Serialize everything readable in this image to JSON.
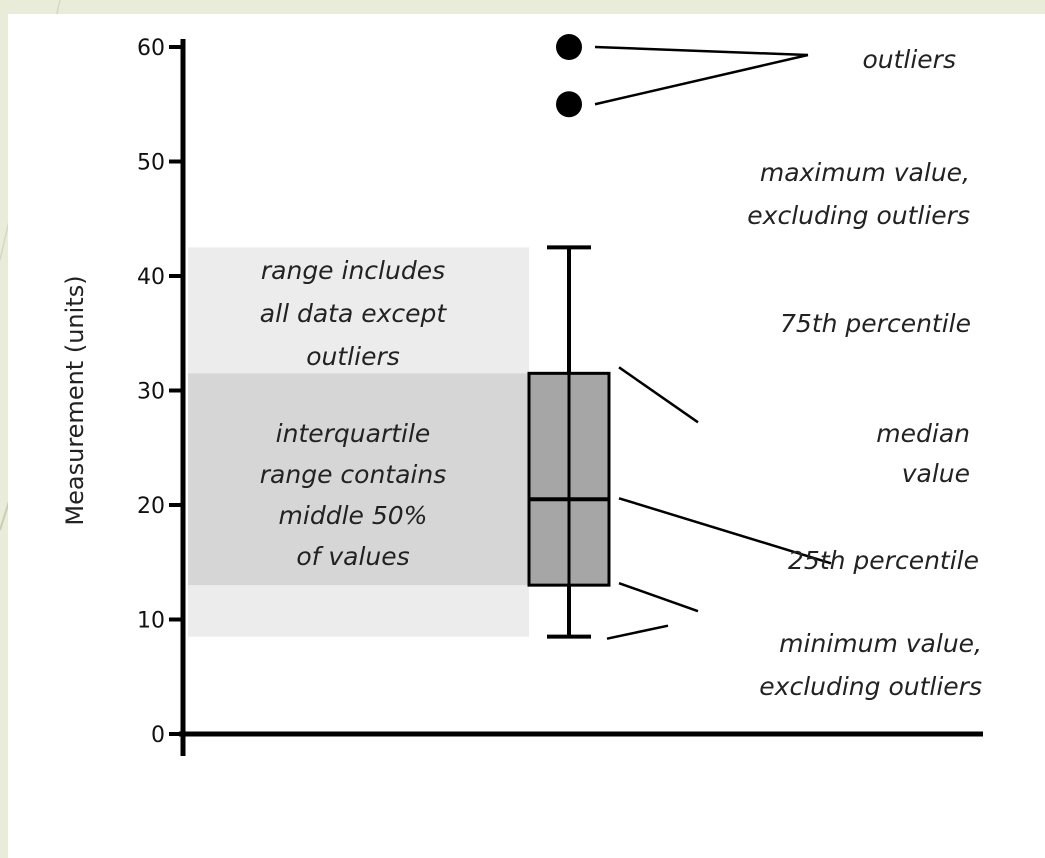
{
  "chart_data": {
    "type": "box",
    "ylabel": "Measurement (units)",
    "ylim": [
      0,
      60
    ],
    "yticks": [
      0,
      10,
      20,
      30,
      40,
      50,
      60
    ],
    "grid": false,
    "box": {
      "whisker_low": 8.5,
      "q1": 13,
      "median": 20.5,
      "q3": 31.5,
      "whisker_high": 42.5,
      "outliers": [
        60,
        55
      ]
    },
    "bands": [
      {
        "from": 8.5,
        "to": 42.5,
        "color": "#ececec"
      },
      {
        "from": 13,
        "to": 31.5,
        "color": "#d6d6d6"
      }
    ],
    "annotations": {
      "outliers": [
        "outliers"
      ],
      "maximum": [
        "maximum value,",
        "excluding outliers"
      ],
      "p75": [
        "75th percentile"
      ],
      "median": [
        "median",
        "value"
      ],
      "p25": [
        "25th percentile"
      ],
      "minimum": [
        "minimum value,",
        "excluding outliers"
      ],
      "range": [
        "range includes",
        "all data except",
        "outliers"
      ],
      "iqr": [
        "interquartile",
        "range contains",
        "middle 50%",
        "of values"
      ]
    }
  },
  "colors": {
    "page_background": "#e9ecd9",
    "card_background": "#ffffff",
    "box_fill": "#a6a6a6",
    "outer_band": "#ececec",
    "inner_band": "#d6d6d6",
    "ink": "#000000"
  }
}
